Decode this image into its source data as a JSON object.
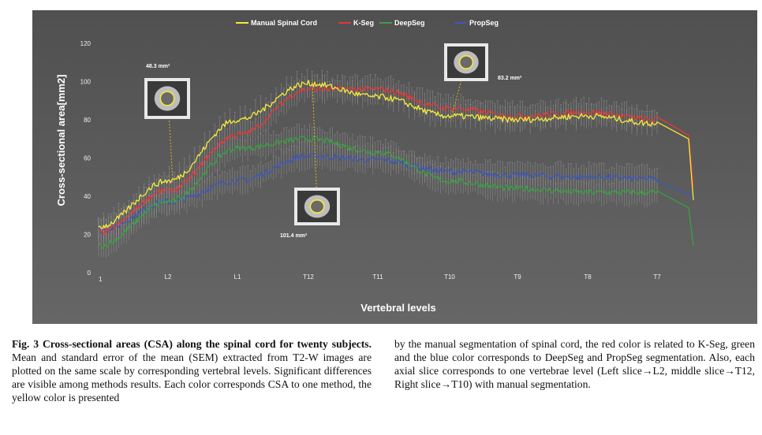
{
  "chart_data": {
    "type": "line",
    "title": "",
    "xlabel": "Vertebral levels",
    "ylabel": "Cross-sectional area[mm2]",
    "ylim": [
      0,
      120
    ],
    "yticks": [
      0,
      20,
      40,
      60,
      80,
      100,
      120
    ],
    "categories": [
      "1",
      "L2",
      "L1",
      "T12",
      "T11",
      "T10",
      "T9",
      "T8",
      "T7"
    ],
    "legend_position": "top",
    "grid": false,
    "series": [
      {
        "name": "Manual Spinal Cord",
        "color": "#f3ea3a",
        "values": [
          24,
          48,
          80,
          99,
          92,
          82,
          80,
          82,
          78
        ]
      },
      {
        "name": "K-Seg",
        "color": "#e03a3a",
        "values": [
          21,
          43,
          72,
          96,
          96,
          86,
          82,
          84,
          80
        ]
      },
      {
        "name": "DeepSeg",
        "color": "#3aa043",
        "values": [
          14,
          37,
          65,
          70,
          63,
          48,
          44,
          42,
          42
        ]
      },
      {
        "name": "PropSeg",
        "color": "#3e58b8",
        "values": [
          22,
          37,
          48,
          61,
          59,
          53,
          51,
          50,
          49
        ]
      }
    ],
    "annotations": [
      "48.3 mm²",
      "101.4 mm²",
      "83.2 mm²"
    ]
  },
  "caption": {
    "label": "Fig. 3",
    "lead": "Cross-sectional areas (CSA) along the spinal cord for twenty subjects.",
    "left_body": "Mean and standard error of the mean (SEM) extracted from T2-W images are plotted on the same scale by corresponding vertebral levels. Significant differences are visible among methods results. Each color corresponds CSA to one method, the yellow color is presented",
    "right_body": "by the manual segmentation of spinal cord, the red color is related to K-Seg, green and the blue color corresponds to DeepSeg and PropSeg segmentation. Also, each axial slice corresponds to one vertebrae level (Left slice→L2, middle slice→T12, Right slice→T10) with manual segmentation."
  }
}
